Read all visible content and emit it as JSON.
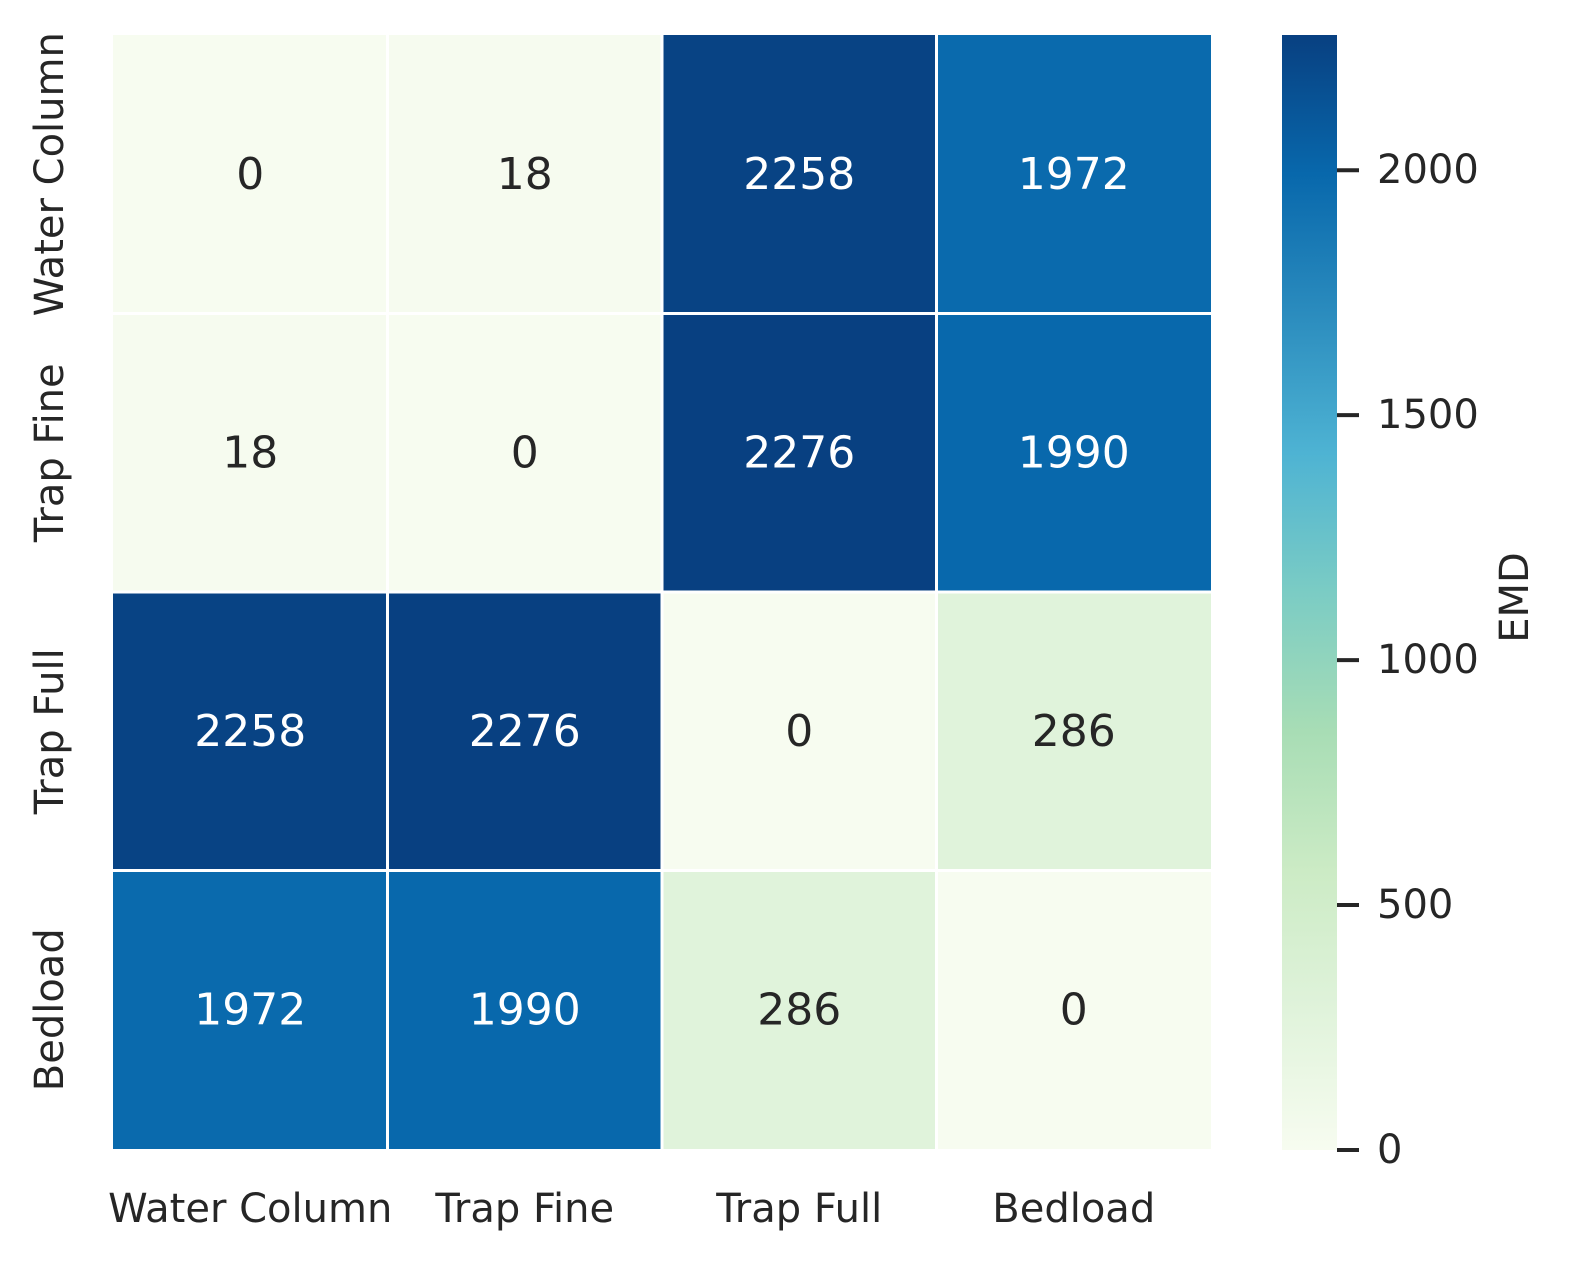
{
  "chart_data": {
    "type": "heatmap",
    "title": "",
    "xlabel": "",
    "ylabel": "",
    "x_categories": [
      "Water Column",
      "Trap Fine",
      "Trap Full",
      "Bedload"
    ],
    "y_categories": [
      "Water Column",
      "Trap Fine",
      "Trap Full",
      "Bedload"
    ],
    "values": [
      [
        0,
        18,
        2258,
        1972
      ],
      [
        18,
        0,
        2276,
        1990
      ],
      [
        2258,
        2276,
        0,
        286
      ],
      [
        1972,
        1990,
        286,
        0
      ]
    ],
    "annotations": true,
    "colormap": "GnBu",
    "colormap_stops": [
      "#f7fcf0",
      "#e0f3db",
      "#ccebc5",
      "#a8ddb5",
      "#7bccc4",
      "#4eb3d3",
      "#2b8cbe",
      "#0868ac",
      "#084081"
    ],
    "value_range": [
      0,
      2276
    ],
    "colorbar": {
      "label": "EMD",
      "ticks": [
        0,
        500,
        1000,
        1500,
        2000
      ],
      "tick_labels": [
        "0",
        "500",
        "1000",
        "1500",
        "2000"
      ]
    },
    "grid": false,
    "legend": "colorbar-right",
    "text_colors": {
      "dark": "#262626",
      "light": "#ffffff"
    }
  }
}
